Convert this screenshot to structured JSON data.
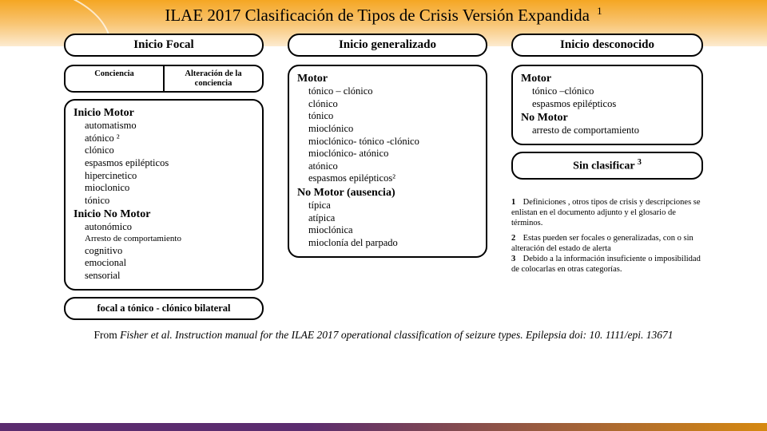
{
  "colors": {
    "band_top": "#f5a623",
    "band_bottom_left": "#5b2c6f",
    "band_bottom_right": "#d68910",
    "border": "#000000",
    "bg": "#ffffff"
  },
  "title": "ILAE 2017 Clasificación de Tipos de Crisis Versión Expandida",
  "title_sup": "1",
  "col1": {
    "header": "Inicio Focal",
    "split_left": "Conciencia",
    "split_right": "Alteración de la conciencia",
    "motor_h": "Inicio Motor",
    "motor_items": [
      "automatismo",
      "atónico ²",
      "clónico",
      "espasmos epilépticos",
      "hipercinetico",
      "mioclonico",
      "tónico"
    ],
    "nomotor_h": "Inicio No Motor",
    "nomotor_items": [
      "autonómico"
    ],
    "nomotor_small": "Arresto de comportamiento",
    "nomotor_items2": [
      "cognitivo",
      "emocional",
      "sensorial"
    ],
    "footer": "focal a tónico - clónico bilateral"
  },
  "col2": {
    "header": "Inicio generalizado",
    "motor_h": "Motor",
    "motor_items": [
      "tónico – clónico",
      "clónico",
      "tónico",
      "mioclónico",
      "mioclónico- tónico -clónico",
      "mioclónico- atónico",
      "atónico",
      "espasmos epilépticos²"
    ],
    "nomotor_h": "No Motor (ausencia)",
    "nomotor_items": [
      "típica",
      "atípica",
      "mioclónica",
      "mioclonía del parpado"
    ]
  },
  "col3": {
    "header": "Inicio desconocido",
    "motor_h": "Motor",
    "motor_items": [
      "tónico –clónico",
      "espasmos epilépticos"
    ],
    "nomotor_h": "No Motor",
    "nomotor_items": [
      "arresto de comportamiento"
    ],
    "unclassified": "Sin clasificar",
    "unclassified_sup": "3"
  },
  "footnotes": {
    "n1": "1",
    "t1": "Definiciones , otros tipos de crisis y descripciones se enlistan en el documento adjunto y el glosario de términos.",
    "n2": "2",
    "t2": "Estas pueden ser focales o generalizadas, con o sin alteración del estado de alerta",
    "n3": "3",
    "t3": "Debido a la información insuficiente o imposibilidad de colocarlas en otras categorías."
  },
  "citation_lead": "From ",
  "citation": "Fisher et al. Instruction manual for the ILAE 2017 operational classification of seizure types. Epilepsia doi: 10. 1111/epi. 13671"
}
